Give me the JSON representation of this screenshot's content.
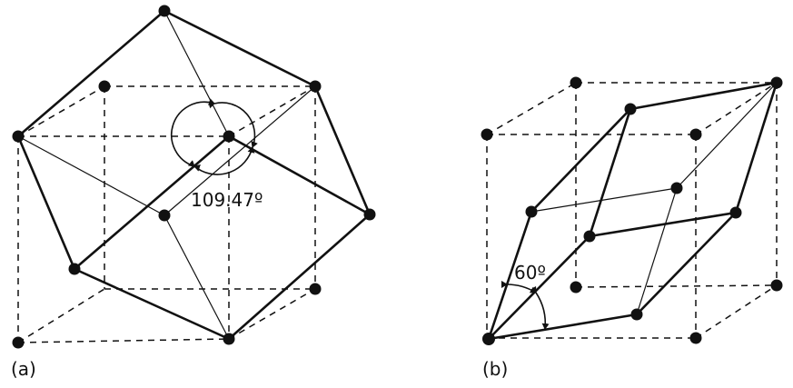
{
  "panels": [
    {
      "label": "(a)",
      "angle_label": "109.47º"
    },
    {
      "label": "(b)",
      "angle_label": "60º"
    }
  ],
  "colors": {
    "ink": "#111111",
    "background": "#ffffff"
  }
}
